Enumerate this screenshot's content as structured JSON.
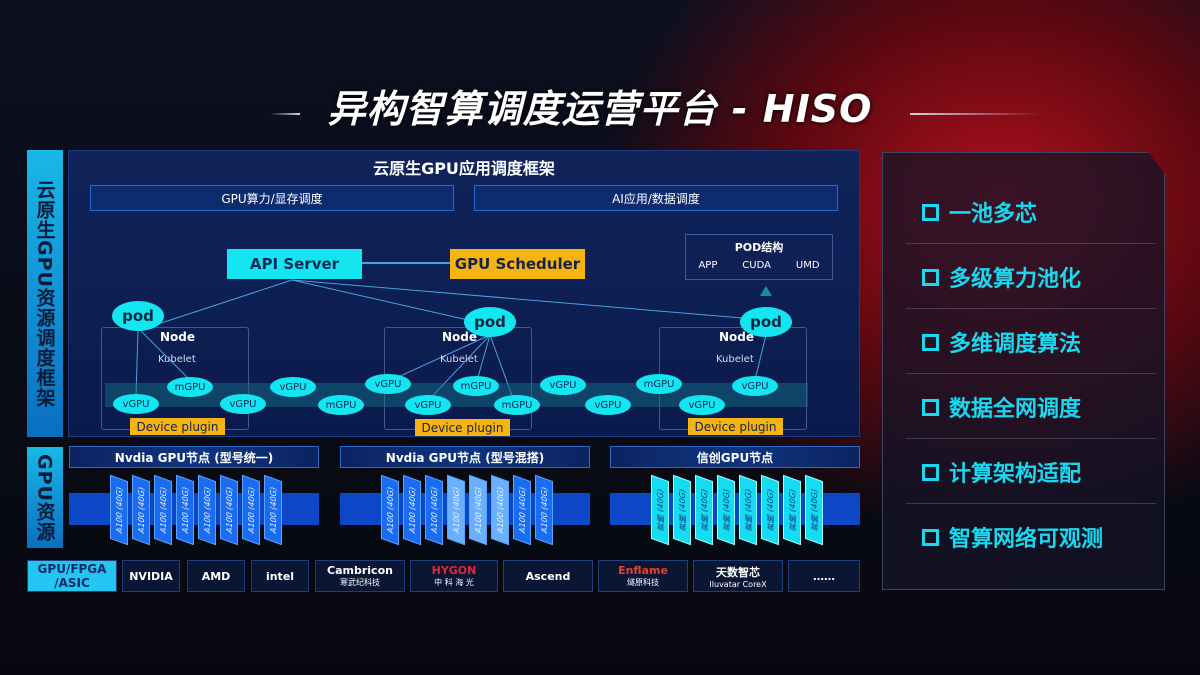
{
  "title": "异构智算调度运营平台 - HISO",
  "left_labels": {
    "framework": "云原生GPU资源调度框架",
    "resources": "GPU资源",
    "chips": "GPU/FPGA /ASIC"
  },
  "framework": {
    "title": "云原生GPU应用调度框架",
    "sub": [
      "GPU算力/显存调度",
      "AI应用/数据调度"
    ],
    "api_server": "API Server",
    "scheduler": "GPU Scheduler",
    "pod_struct": {
      "title": "POD结构",
      "items": [
        "APP",
        "CUDA",
        "UMD"
      ]
    },
    "pod": "pod",
    "node": "Node",
    "kubelet": "Kubelet",
    "device_plugin": "Device plugin",
    "gpus": [
      "vGPU",
      "mGPU",
      "vGPU",
      "vGPU",
      "mGPU",
      "vGPU",
      "vGPU",
      "mGPU",
      "mGPU",
      "vGPU",
      "vGPU",
      "mGPU",
      "vGPU",
      "vGPU"
    ]
  },
  "gpu_nodes": [
    {
      "title": "Nvdia GPU节点 (型号统一)",
      "cards": [
        "A100 (40G)",
        "A100 (40G)",
        "A100 (40G)",
        "A100 (40G)",
        "A100 (40G)",
        "A100 (40G)",
        "A100 (40G)",
        "A100 (40G)"
      ]
    },
    {
      "title": "Nvdia GPU节点 (型号混搭)",
      "cards": [
        "A100 (40G)",
        "A100 (40G)",
        "A100 (40G)",
        "A100 (40G)",
        "A100 (40G)",
        "A100 (40G)",
        "A100 (40G)",
        "A100 (40G)"
      ]
    },
    {
      "title": "信创GPU节点",
      "cards": [
        "昇腾 (40G)",
        "昇腾 (40G)",
        "昇腾 (40G)",
        "昇腾 (40G)",
        "昇腾 (40G)",
        "昇腾 (40G)",
        "昇腾 (40G)",
        "昇腾 (40G)"
      ]
    }
  ],
  "vendors": [
    {
      "name": "NVIDIA",
      "sub": ""
    },
    {
      "name": "AMD",
      "sub": ""
    },
    {
      "name": "intel",
      "sub": ""
    },
    {
      "name": "Cambricon",
      "sub": "寒武纪科技"
    },
    {
      "name": "HYGON",
      "sub": "中 科 海 光"
    },
    {
      "name": "Ascend",
      "sub": ""
    },
    {
      "name": "Enflame",
      "sub": "燧原科技"
    },
    {
      "name": "天数智芯",
      "sub": "Iluvatar CoreX"
    },
    {
      "name": "……",
      "sub": ""
    }
  ],
  "features": [
    "一池多芯",
    "多级算力池化",
    "多维调度算法",
    "数据全网调度",
    "计算架构适配",
    "智算网络可观测"
  ],
  "colors": {
    "cyan": "#13e6f0",
    "gold": "#f5b40f",
    "blue": "#1a6cf0",
    "red": "#b0101e"
  }
}
